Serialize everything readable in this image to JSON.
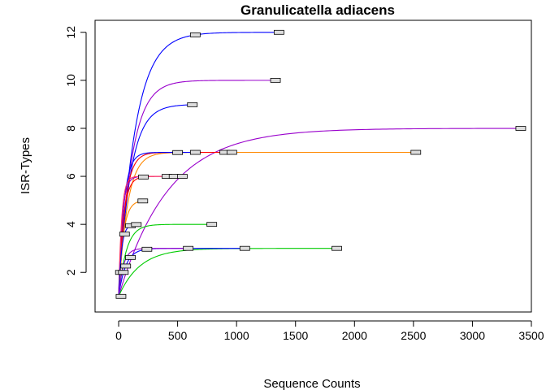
{
  "chart_data": {
    "type": "line",
    "title": "Granulicatella adiacens",
    "xlabel": "Sequence Counts",
    "ylabel": "ISR-Types",
    "xlim": [
      -200,
      3500
    ],
    "ylim": [
      0.35,
      12.5
    ],
    "xticks": [
      0,
      500,
      1000,
      1500,
      2000,
      2500,
      3000,
      3500
    ],
    "yticks": [
      2,
      4,
      6,
      8,
      10,
      12
    ],
    "grid": false,
    "legend": "none",
    "colors": {
      "blue": "#0000ff",
      "purple": "#9900cc",
      "red": "#ff0000",
      "orange": "#ff8800",
      "green": "#00cc00",
      "pink": "#ff3366",
      "marker": "#dddddd"
    },
    "series": [
      {
        "color": "#0000ff",
        "y0": 1,
        "asymptote": 12,
        "rate": 140,
        "xmax": 1360,
        "markers": [
          650,
          1360
        ]
      },
      {
        "color": "#9900cc",
        "y0": 1,
        "asymptote": 10,
        "rate": 110,
        "xmax": 1330,
        "markers": [
          1330
        ]
      },
      {
        "color": "#0000ff",
        "y0": 1,
        "asymptote": 9,
        "rate": 100,
        "xmax": 625,
        "markers": [
          625
        ]
      },
      {
        "color": "#9900cc",
        "y0": 1,
        "asymptote": 8,
        "rate": 420,
        "xmax": 3410,
        "markers": [
          3410
        ]
      },
      {
        "color": "#ff8800",
        "y0": 1,
        "asymptote": 7,
        "rate": 75,
        "xmax": 2520,
        "markers": [
          500,
          650,
          900,
          960,
          2520
        ]
      },
      {
        "color": "#ff0000",
        "y0": 1,
        "asymptote": 7,
        "rate": 55,
        "xmax": 960,
        "markers": []
      },
      {
        "color": "#0000ff",
        "y0": 1,
        "asymptote": 7,
        "rate": 45,
        "xmax": 660,
        "markers": []
      },
      {
        "color": "#ff0000",
        "y0": 1,
        "asymptote": 6,
        "rate": 40,
        "xmax": 540,
        "markers": [
          210,
          410,
          470,
          540
        ]
      },
      {
        "color": "#9900cc",
        "y0": 1,
        "asymptote": 6,
        "rate": 30,
        "xmax": 470,
        "markers": []
      },
      {
        "color": "#ff3366",
        "y0": 1,
        "asymptote": 6,
        "rate": 25,
        "xmax": 410,
        "markers": []
      },
      {
        "color": "#ff8800",
        "y0": 1,
        "asymptote": 5,
        "rate": 40,
        "xmax": 205,
        "markers": [
          205
        ]
      },
      {
        "color": "#00cc00",
        "y0": 1,
        "asymptote": 4,
        "rate": 65,
        "xmax": 790,
        "markers": [
          790
        ]
      },
      {
        "color": "#0000ff",
        "y0": 1,
        "asymptote": 4,
        "rate": 25,
        "xmax": 150,
        "markers": [
          50,
          100,
          150
        ]
      },
      {
        "color": "#00cc00",
        "y0": 1,
        "asymptote": 3,
        "rate": 180,
        "xmax": 1850,
        "markers": [
          1850
        ]
      },
      {
        "color": "#0000ff",
        "y0": 1,
        "asymptote": 3,
        "rate": 60,
        "xmax": 1070,
        "markers": [
          60,
          100,
          240,
          590,
          1070
        ]
      },
      {
        "color": "#9900cc",
        "y0": 1,
        "asymptote": 3,
        "rate": 40,
        "xmax": 600,
        "markers": []
      }
    ],
    "points": [
      {
        "x": 15,
        "y": 2
      },
      {
        "x": 40,
        "y": 2
      },
      {
        "x": 20,
        "y": 1
      }
    ]
  }
}
